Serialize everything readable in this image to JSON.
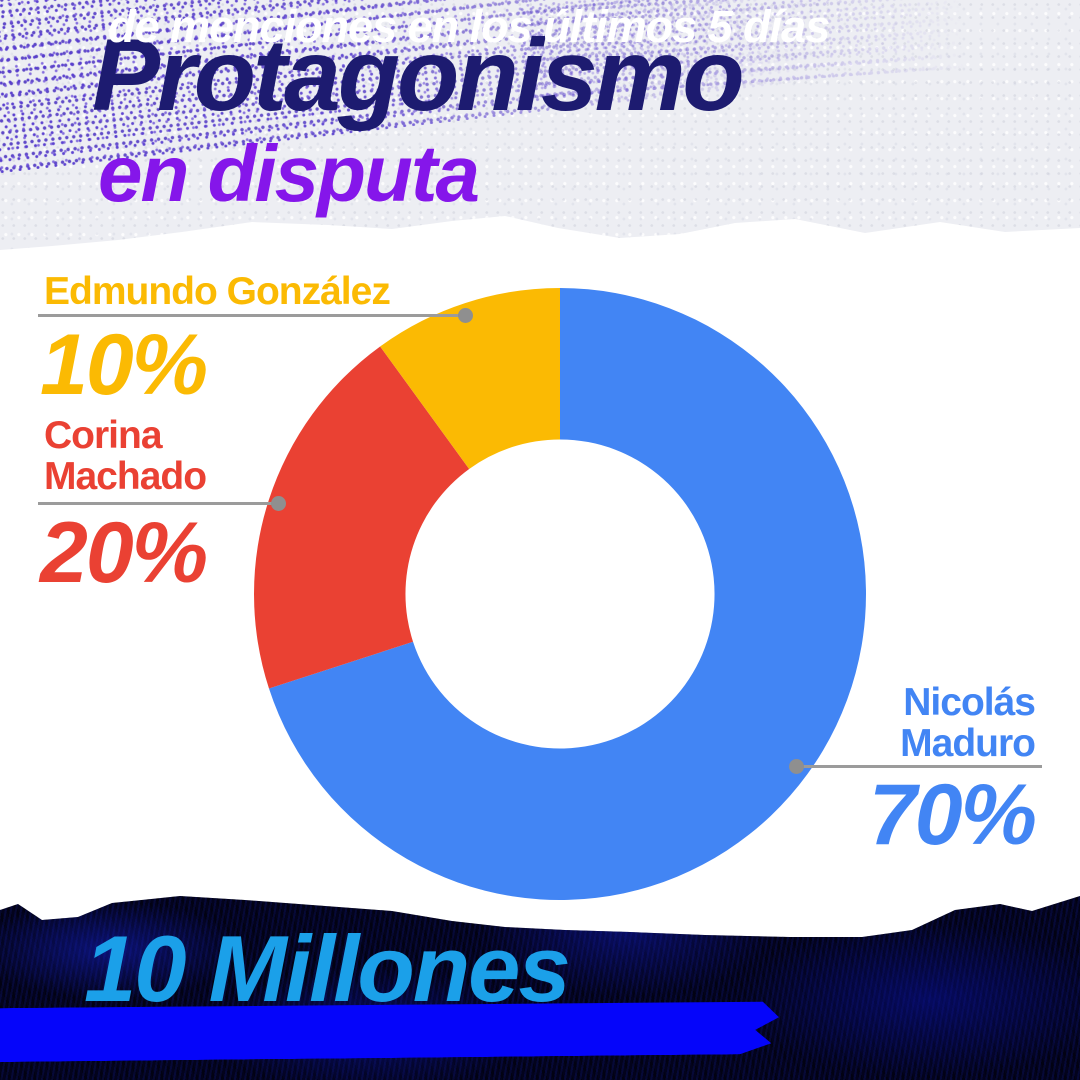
{
  "title": {
    "line1": "Protagonismo",
    "line2": "en disputa",
    "line1_color": "#1D1B70",
    "line2_color": "#8516EA"
  },
  "chart_data": {
    "type": "pie",
    "variant": "donut",
    "title": "Protagonismo en disputa",
    "start_angle_deg": 0,
    "direction": "clockwise",
    "inner_radius_ratio": 0.505,
    "legend_position": "callouts",
    "segments": [
      {
        "label": "Nicolás Maduro",
        "value": 70,
        "display": "70%",
        "color": "#4285F4"
      },
      {
        "label": "Corina Machado",
        "value": 20,
        "display": "20%",
        "color": "#EA4133"
      },
      {
        "label": "Edmundo González",
        "value": 10,
        "display": "10%",
        "color": "#FBBA03"
      }
    ],
    "connector_color": "#9B9B9B"
  },
  "footer": {
    "headline": "10 Millones",
    "subline": "de menciones en los últimos 5 días",
    "headline_color": "#1BA0E9",
    "band_color": "#0505FA",
    "subline_color": "#FFFFFF"
  }
}
